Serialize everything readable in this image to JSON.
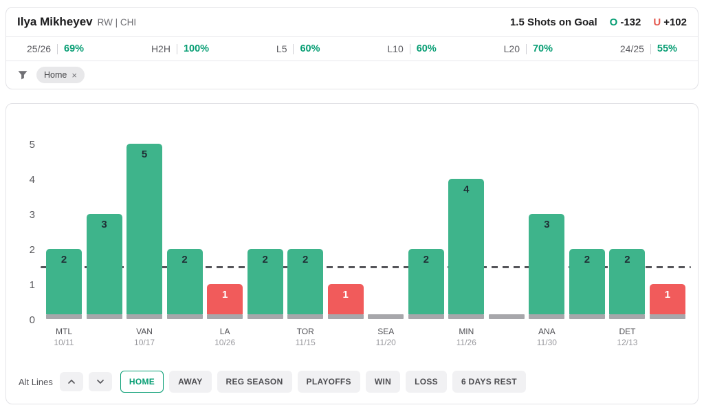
{
  "header": {
    "player_name": "Ilya Mikheyev",
    "player_meta": "RW | CHI",
    "prop": "1.5 Shots on Goal",
    "over_label": "O",
    "over_odds": "-132",
    "under_label": "U",
    "under_odds": "+102"
  },
  "stats": [
    {
      "label": "25/26",
      "value": "69%"
    },
    {
      "label": "H2H",
      "value": "100%"
    },
    {
      "label": "L5",
      "value": "60%"
    },
    {
      "label": "L10",
      "value": "60%"
    },
    {
      "label": "L20",
      "value": "70%"
    },
    {
      "label": "24/25",
      "value": "55%"
    }
  ],
  "filters": {
    "chips": [
      {
        "label": "Home",
        "remove_glyph": "×"
      }
    ]
  },
  "chart_data": {
    "type": "bar",
    "title": "",
    "xlabel": "",
    "ylabel": "",
    "ylim": [
      0,
      5
    ],
    "yticks": [
      0,
      1,
      2,
      3,
      4,
      5
    ],
    "line_value": 1.5,
    "grid": false,
    "bars": [
      {
        "value": 2,
        "color": "green",
        "label": "MTL",
        "date": "10/11"
      },
      {
        "value": 3,
        "color": "green",
        "label": null,
        "date": null
      },
      {
        "value": 5,
        "color": "green",
        "label": "VAN",
        "date": "10/17"
      },
      {
        "value": 2,
        "color": "green",
        "label": null,
        "date": null
      },
      {
        "value": 1,
        "color": "red",
        "label": "LA",
        "date": "10/26"
      },
      {
        "value": 2,
        "color": "green",
        "label": null,
        "date": null
      },
      {
        "value": 2,
        "color": "green",
        "label": "TOR",
        "date": "11/15"
      },
      {
        "value": 1,
        "color": "red",
        "label": null,
        "date": null
      },
      {
        "value": 0,
        "color": "gray",
        "label": "SEA",
        "date": "11/20"
      },
      {
        "value": 2,
        "color": "green",
        "label": null,
        "date": null
      },
      {
        "value": 4,
        "color": "green",
        "label": "MIN",
        "date": "11/26"
      },
      {
        "value": 0,
        "color": "gray",
        "label": null,
        "date": null
      },
      {
        "value": 3,
        "color": "green",
        "label": "ANA",
        "date": "11/30"
      },
      {
        "value": 2,
        "color": "green",
        "label": null,
        "date": null
      },
      {
        "value": 2,
        "color": "green",
        "label": "DET",
        "date": "12/13"
      },
      {
        "value": 1,
        "color": "red",
        "label": null,
        "date": null
      }
    ]
  },
  "controls": {
    "alt_lines_label": "Alt Lines",
    "buttons": [
      {
        "label": "HOME",
        "active": true
      },
      {
        "label": "AWAY",
        "active": false
      },
      {
        "label": "REG SEASON",
        "active": false
      },
      {
        "label": "PLAYOFFS",
        "active": false
      },
      {
        "label": "WIN",
        "active": false
      },
      {
        "label": "LOSS",
        "active": false
      },
      {
        "label": "6 DAYS REST",
        "active": false
      }
    ]
  },
  "colors": {
    "bar_green": "#3eb48b",
    "bar_red": "#f15b5b",
    "bar_gray": "#a7a7ab",
    "accent_green": "#069d73",
    "under_red": "#e4584e",
    "threshold_line": "#55555a"
  }
}
